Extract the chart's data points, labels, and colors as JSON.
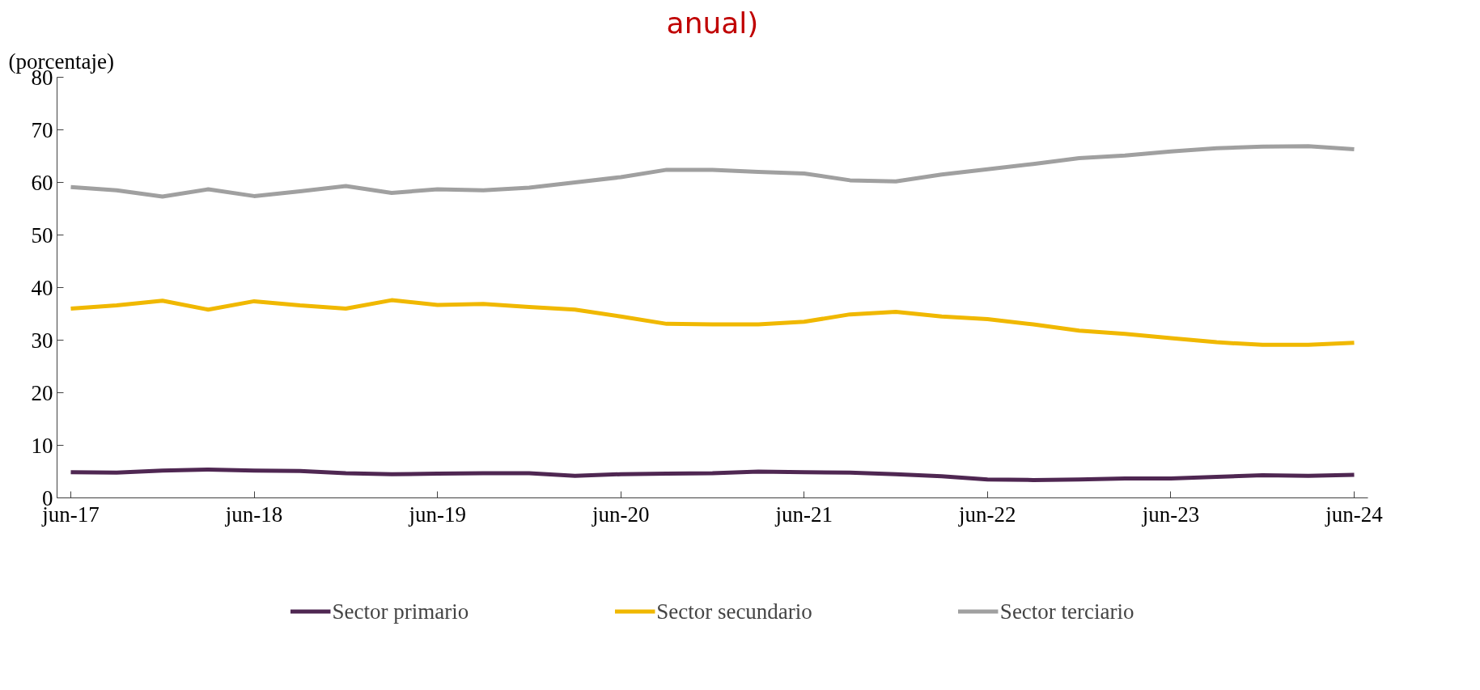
{
  "chart_data": {
    "type": "line",
    "title": "anual)",
    "ylabel": "(porcentaje)",
    "categories": [
      "jun-17",
      null,
      null,
      null,
      "jun-18",
      null,
      null,
      null,
      "jun-19",
      null,
      null,
      null,
      "jun-20",
      null,
      null,
      null,
      "jun-21",
      null,
      null,
      null,
      "jun-22",
      null,
      null,
      null,
      "jun-23",
      null,
      null,
      null,
      "jun-24"
    ],
    "series": [
      {
        "name": "Sector primario",
        "color": "#4f2752",
        "values": [
          4.9,
          4.8,
          5.2,
          5.4,
          5.2,
          5.1,
          4.7,
          4.5,
          4.6,
          4.7,
          4.7,
          4.2,
          4.5,
          4.6,
          4.7,
          5.0,
          4.9,
          4.8,
          4.5,
          4.1,
          3.5,
          3.4,
          3.5,
          3.7,
          3.7,
          4.0,
          4.3,
          4.2,
          4.4
        ]
      },
      {
        "name": "Sector secundario",
        "color": "#f0b800",
        "values": [
          36.0,
          36.6,
          37.5,
          35.8,
          37.4,
          36.6,
          36.0,
          37.6,
          36.7,
          36.9,
          36.3,
          35.8,
          34.5,
          33.1,
          33.0,
          33.0,
          33.5,
          34.9,
          35.4,
          34.5,
          34.0,
          33.0,
          31.8,
          31.2,
          30.4,
          29.6,
          29.1,
          29.1,
          29.5
        ]
      },
      {
        "name": "Sector terciario",
        "color": "#a0a0a0",
        "values": [
          59.1,
          58.5,
          57.3,
          58.7,
          57.4,
          58.3,
          59.3,
          58.0,
          58.7,
          58.5,
          59.0,
          60.0,
          61.0,
          62.4,
          62.4,
          62.0,
          61.7,
          60.4,
          60.2,
          61.5,
          62.5,
          63.5,
          64.6,
          65.1,
          65.9,
          66.5,
          66.8,
          66.9,
          66.3
        ]
      }
    ],
    "ylim": [
      0,
      80
    ],
    "yticks": [
      0,
      10,
      20,
      30,
      40,
      50,
      60,
      70,
      80
    ],
    "grid": false,
    "legend": "bottom",
    "marker": "none",
    "line_style": "solid"
  }
}
